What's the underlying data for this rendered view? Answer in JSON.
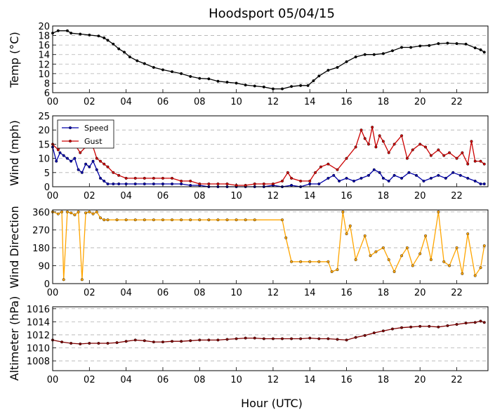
{
  "chart_data": {
    "type": "line",
    "title": "Hoodsport 05/04/15",
    "xlabel": "Hour (UTC)",
    "xlim": [
      0,
      23.7
    ],
    "xticks": [
      "00",
      "02",
      "04",
      "06",
      "08",
      "10",
      "12",
      "14",
      "16",
      "18",
      "20",
      "22"
    ],
    "panels": [
      {
        "name": "temp",
        "ylabel": "Temp (°C)",
        "ylim": [
          6,
          20
        ],
        "yticks": [
          6,
          8,
          10,
          12,
          14,
          16,
          18,
          20
        ],
        "series": [
          {
            "color": "#000000",
            "x": [
              0,
              0.3,
              0.8,
              1.0,
              1.5,
              2.0,
              2.5,
              2.8,
              3.0,
              3.3,
              3.6,
              3.9,
              4.2,
              4.6,
              5.0,
              5.5,
              6.0,
              6.5,
              7.0,
              7.5,
              8.0,
              8.5,
              9.0,
              9.5,
              10.0,
              10.5,
              11.0,
              11.5,
              12.0,
              12.5,
              13.0,
              13.5,
              13.9,
              14.2,
              14.5,
              15.0,
              15.5,
              16.0,
              16.5,
              17.0,
              17.5,
              18.0,
              18.5,
              19.0,
              19.5,
              20.0,
              20.5,
              21.0,
              21.5,
              22.0,
              22.5,
              23.0,
              23.3,
              23.5
            ],
            "y": [
              18.5,
              19,
              19,
              18.5,
              18.3,
              18.1,
              17.9,
              17.5,
              17,
              16.2,
              15.2,
              14.5,
              13.5,
              12.7,
              12.1,
              11.3,
              10.8,
              10.4,
              10,
              9.4,
              9,
              8.9,
              8.4,
              8.2,
              8,
              7.6,
              7.4,
              7.2,
              6.8,
              6.8,
              7.3,
              7.5,
              7.5,
              8.5,
              9.5,
              10.7,
              11.3,
              12.5,
              13.5,
              14,
              14,
              14.2,
              14.8,
              15.5,
              15.5,
              15.8,
              15.9,
              16.3,
              16.4,
              16.3,
              16.2,
              15.4,
              15,
              14.5
            ]
          }
        ]
      },
      {
        "name": "wind",
        "ylabel": "Wind (mph)",
        "ylim": [
          0,
          25
        ],
        "yticks": [
          0,
          5,
          10,
          15,
          20,
          25
        ],
        "legend": "top-left",
        "series": [
          {
            "name": "Speed",
            "color": "#0000aa",
            "x": [
              0,
              0.2,
              0.4,
              0.6,
              0.8,
              1.0,
              1.2,
              1.4,
              1.6,
              1.8,
              2.0,
              2.2,
              2.4,
              2.6,
              2.8,
              3.0,
              3.3,
              3.6,
              4.0,
              4.5,
              5.0,
              5.5,
              6.0,
              6.5,
              7.0,
              7.5,
              8.0,
              8.5,
              9.0,
              9.5,
              10.0,
              10.5,
              11.0,
              11.5,
              12.0,
              12.5,
              13.0,
              13.5,
              14.0,
              14.5,
              15.0,
              15.3,
              15.6,
              16.0,
              16.4,
              16.8,
              17.2,
              17.5,
              17.8,
              18.0,
              18.3,
              18.6,
              19.0,
              19.4,
              19.8,
              20.2,
              20.6,
              21.0,
              21.4,
              21.8,
              22.2,
              22.6,
              23.0,
              23.3,
              23.5
            ],
            "y": [
              14,
              9,
              12,
              11,
              10,
              9,
              10,
              6,
              5,
              8,
              7,
              9,
              6,
              3,
              2,
              1,
              1,
              1,
              1,
              1,
              1,
              1,
              1,
              1,
              1,
              0.5,
              0.5,
              0,
              0,
              0,
              0,
              0,
              0,
              0,
              0.5,
              0,
              0.5,
              0,
              1,
              1,
              3,
              4,
              2,
              3,
              2,
              3,
              4,
              6,
              5,
              3,
              2,
              4,
              3,
              5,
              4,
              2,
              3,
              4,
              3,
              5,
              4,
              3,
              2,
              1,
              1
            ]
          },
          {
            "name": "Gust",
            "color": "#cc0000",
            "x": [
              0,
              0.3,
              0.6,
              0.9,
              1.2,
              1.5,
              1.8,
              2.0,
              2.2,
              2.4,
              2.6,
              2.8,
              3.0,
              3.3,
              3.6,
              4.0,
              4.5,
              5.0,
              5.5,
              6.0,
              6.5,
              7.0,
              7.5,
              8.0,
              8.5,
              9.0,
              9.5,
              10.0,
              10.5,
              11.0,
              11.5,
              12.0,
              12.5,
              12.8,
              13.0,
              13.5,
              14.0,
              14.3,
              14.6,
              15.0,
              15.5,
              16.0,
              16.5,
              16.8,
              17.0,
              17.2,
              17.4,
              17.6,
              17.8,
              18.0,
              18.3,
              18.6,
              19.0,
              19.3,
              19.6,
              20.0,
              20.3,
              20.6,
              21.0,
              21.3,
              21.6,
              22.0,
              22.3,
              22.6,
              22.8,
              23.0,
              23.3,
              23.5
            ],
            "y": [
              15,
              13,
              15,
              16,
              15,
              12,
              14,
              15,
              14,
              10,
              9,
              8,
              7,
              5,
              4,
              3,
              3,
              3,
              3,
              3,
              3,
              2,
              2,
              1,
              1,
              1,
              1,
              0.5,
              0.5,
              1,
              1,
              1,
              2,
              5,
              3,
              2,
              2,
              5,
              7,
              8,
              6,
              10,
              14,
              20,
              17,
              15,
              21,
              14,
              18,
              16,
              12,
              15,
              18,
              10,
              13,
              15,
              14,
              11,
              13,
              11,
              12,
              10,
              12,
              8,
              16,
              9,
              9,
              8
            ]
          }
        ]
      },
      {
        "name": "direction",
        "ylabel": "Wind Direction",
        "ylim": [
          0,
          370
        ],
        "yticks": [
          0,
          90,
          180,
          270,
          360
        ],
        "series": [
          {
            "color": "#ffa500",
            "x": [
              0,
              0.3,
              0.5,
              0.6,
              0.8,
              1.0,
              1.2,
              1.4,
              1.6,
              1.8,
              2.0,
              2.2,
              2.4,
              2.6,
              2.8,
              3.0,
              3.5,
              4.0,
              4.5,
              5.0,
              5.5,
              6.0,
              6.5,
              7.0,
              7.5,
              8.0,
              8.5,
              9.0,
              9.5,
              10.0,
              10.5,
              11.0,
              12.5,
              12.7,
              13.0,
              13.5,
              14.0,
              14.5,
              15.0,
              15.2,
              15.5,
              15.8,
              16.0,
              16.2,
              16.5,
              17.0,
              17.3,
              17.6,
              18.0,
              18.3,
              18.6,
              19.0,
              19.3,
              19.6,
              20.0,
              20.3,
              20.6,
              21.0,
              21.3,
              21.6,
              22.0,
              22.3,
              22.6,
              23.0,
              23.3,
              23.5
            ],
            "y": [
              360,
              350,
              360,
              20,
              360,
              355,
              345,
              360,
              20,
              355,
              360,
              350,
              360,
              330,
              320,
              320,
              320,
              320,
              320,
              320,
              320,
              320,
              320,
              320,
              320,
              320,
              320,
              320,
              320,
              320,
              320,
              320,
              320,
              230,
              110,
              110,
              110,
              110,
              110,
              60,
              70,
              360,
              250,
              290,
              120,
              240,
              140,
              160,
              180,
              120,
              60,
              140,
              180,
              90,
              150,
              240,
              120,
              360,
              110,
              90,
              180,
              50,
              250,
              40,
              80,
              190
            ]
          }
        ]
      },
      {
        "name": "altimeter",
        "ylabel": "Altimeter (hPa)",
        "ylim": [
          1006.5,
          1016.3
        ],
        "yticks": [
          1008,
          1010,
          1012,
          1014,
          1016
        ],
        "series": [
          {
            "color": "#800000",
            "x": [
              0,
              0.5,
              1.0,
              1.5,
              2.0,
              2.5,
              3.0,
              3.5,
              4.0,
              4.5,
              5.0,
              5.5,
              6.0,
              6.5,
              7.0,
              7.5,
              8.0,
              8.5,
              9.0,
              9.5,
              10.0,
              10.5,
              11.0,
              11.5,
              12.0,
              12.5,
              13.0,
              13.5,
              14.0,
              14.5,
              15.0,
              15.5,
              16.0,
              16.5,
              17.0,
              17.5,
              18.0,
              18.5,
              19.0,
              19.5,
              20.0,
              20.5,
              21.0,
              21.5,
              22.0,
              22.5,
              23.0,
              23.3,
              23.5
            ],
            "y": [
              1011.2,
              1010.9,
              1010.7,
              1010.6,
              1010.7,
              1010.7,
              1010.7,
              1010.8,
              1011.0,
              1011.2,
              1011.1,
              1010.9,
              1010.9,
              1011.0,
              1011.0,
              1011.1,
              1011.2,
              1011.2,
              1011.2,
              1011.3,
              1011.4,
              1011.5,
              1011.5,
              1011.4,
              1011.4,
              1011.4,
              1011.4,
              1011.4,
              1011.5,
              1011.4,
              1011.4,
              1011.3,
              1011.2,
              1011.6,
              1011.9,
              1012.3,
              1012.6,
              1012.9,
              1013.1,
              1013.2,
              1013.3,
              1013.3,
              1013.2,
              1013.4,
              1013.6,
              1013.8,
              1013.9,
              1014.1,
              1013.9
            ]
          }
        ]
      }
    ]
  }
}
